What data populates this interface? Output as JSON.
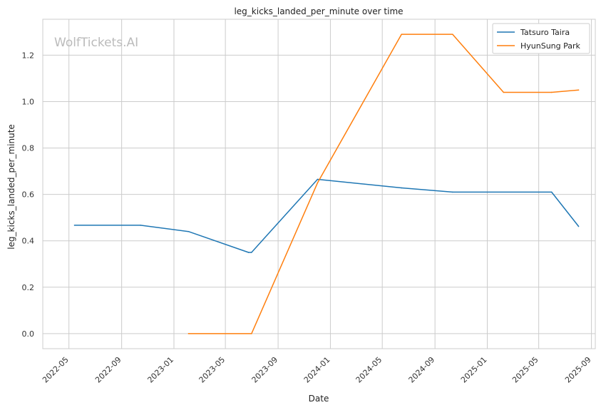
{
  "watermark": "WolfTickets.AI",
  "chart_data": {
    "type": "line",
    "title": "leg_kicks_landed_per_minute over time",
    "xlabel": "Date",
    "ylabel": "leg_kicks_landed_per_minute",
    "x_axis_type": "date",
    "xlim": [
      "2022-03-01",
      "2025-09-10"
    ],
    "ylim": [
      -0.065,
      1.355
    ],
    "x_ticks": [
      "2022-05-01",
      "2022-09-01",
      "2023-01-01",
      "2023-05-01",
      "2023-09-01",
      "2024-01-01",
      "2024-05-01",
      "2024-09-01",
      "2025-01-01",
      "2025-05-01",
      "2025-09-01"
    ],
    "x_tick_labels": [
      "2022-05",
      "2022-09",
      "2023-01",
      "2023-05",
      "2023-09",
      "2024-01",
      "2024-05",
      "2024-09",
      "2025-01",
      "2025-05",
      "2025-09"
    ],
    "y_ticks": [
      0.0,
      0.2,
      0.4,
      0.6,
      0.8,
      1.0,
      1.2
    ],
    "y_tick_labels": [
      "0.0",
      "0.2",
      "0.4",
      "0.6",
      "0.8",
      "1.0",
      "1.2"
    ],
    "grid": true,
    "legend_position": "top-right",
    "series": [
      {
        "name": "Tatsuro Taira",
        "color": "#1f77b4",
        "points": [
          {
            "x": "2022-05-14",
            "y": 0.467
          },
          {
            "x": "2022-10-15",
            "y": 0.467
          },
          {
            "x": "2023-02-04",
            "y": 0.44
          },
          {
            "x": "2023-06-24",
            "y": 0.35
          },
          {
            "x": "2023-07-01",
            "y": 0.35
          },
          {
            "x": "2023-12-02",
            "y": 0.665
          },
          {
            "x": "2024-06-15",
            "y": 0.628
          },
          {
            "x": "2024-10-12",
            "y": 0.61
          },
          {
            "x": "2025-05-31",
            "y": 0.61
          },
          {
            "x": "2025-08-02",
            "y": 0.462
          }
        ]
      },
      {
        "name": "HyunSung Park",
        "color": "#ff7f0e",
        "points": [
          {
            "x": "2023-02-04",
            "y": 0.0
          },
          {
            "x": "2023-07-01",
            "y": 0.0
          },
          {
            "x": "2023-12-02",
            "y": 0.65
          },
          {
            "x": "2024-06-15",
            "y": 1.29
          },
          {
            "x": "2024-10-12",
            "y": 1.29
          },
          {
            "x": "2025-02-08",
            "y": 1.04
          },
          {
            "x": "2025-05-31",
            "y": 1.04
          },
          {
            "x": "2025-08-02",
            "y": 1.05
          }
        ]
      }
    ]
  }
}
